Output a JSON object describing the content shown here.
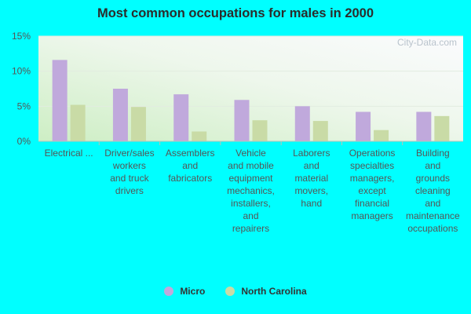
{
  "chart_data": {
    "type": "bar",
    "title": "Most common occupations for males in 2000",
    "categories": [
      "Electrical ...",
      "Driver/sales workers and truck drivers",
      "Assemblers and fabricators",
      "Vehicle and mobile equipment mechanics, installers, and repairers",
      "Laborers and material movers, hand",
      "Operations specialties managers, except financial managers",
      "Building and grounds cleaning and maintenance occupations"
    ],
    "category_lines": [
      [
        "Electrical ..."
      ],
      [
        "Driver/sales",
        "workers",
        "and truck",
        "drivers"
      ],
      [
        "Assemblers",
        "and",
        "fabricators"
      ],
      [
        "Vehicle",
        "and mobile",
        "equipment",
        "mechanics,",
        "installers,",
        "and",
        "repairers"
      ],
      [
        "Laborers",
        "and",
        "material",
        "movers,",
        "hand"
      ],
      [
        "Operations",
        "specialties",
        "managers,",
        "except",
        "financial",
        "managers"
      ],
      [
        "Building",
        "and",
        "grounds",
        "cleaning",
        "and",
        "maintenance",
        "occupations"
      ]
    ],
    "series": [
      {
        "name": "Micro",
        "color": "#c0a9dc",
        "values": [
          11.6,
          7.5,
          6.7,
          5.9,
          5.0,
          4.2,
          4.2
        ]
      },
      {
        "name": "North Carolina",
        "color": "#c9dba6",
        "values": [
          5.2,
          4.9,
          1.4,
          3.0,
          2.9,
          1.6,
          3.6
        ]
      }
    ],
    "yticks": [
      "0%",
      "5%",
      "10%",
      "15%"
    ],
    "ylim": [
      0,
      15
    ],
    "xlabel": "",
    "ylabel": "",
    "legend_position": "bottom",
    "grid": true
  },
  "watermark": "City-Data.com"
}
